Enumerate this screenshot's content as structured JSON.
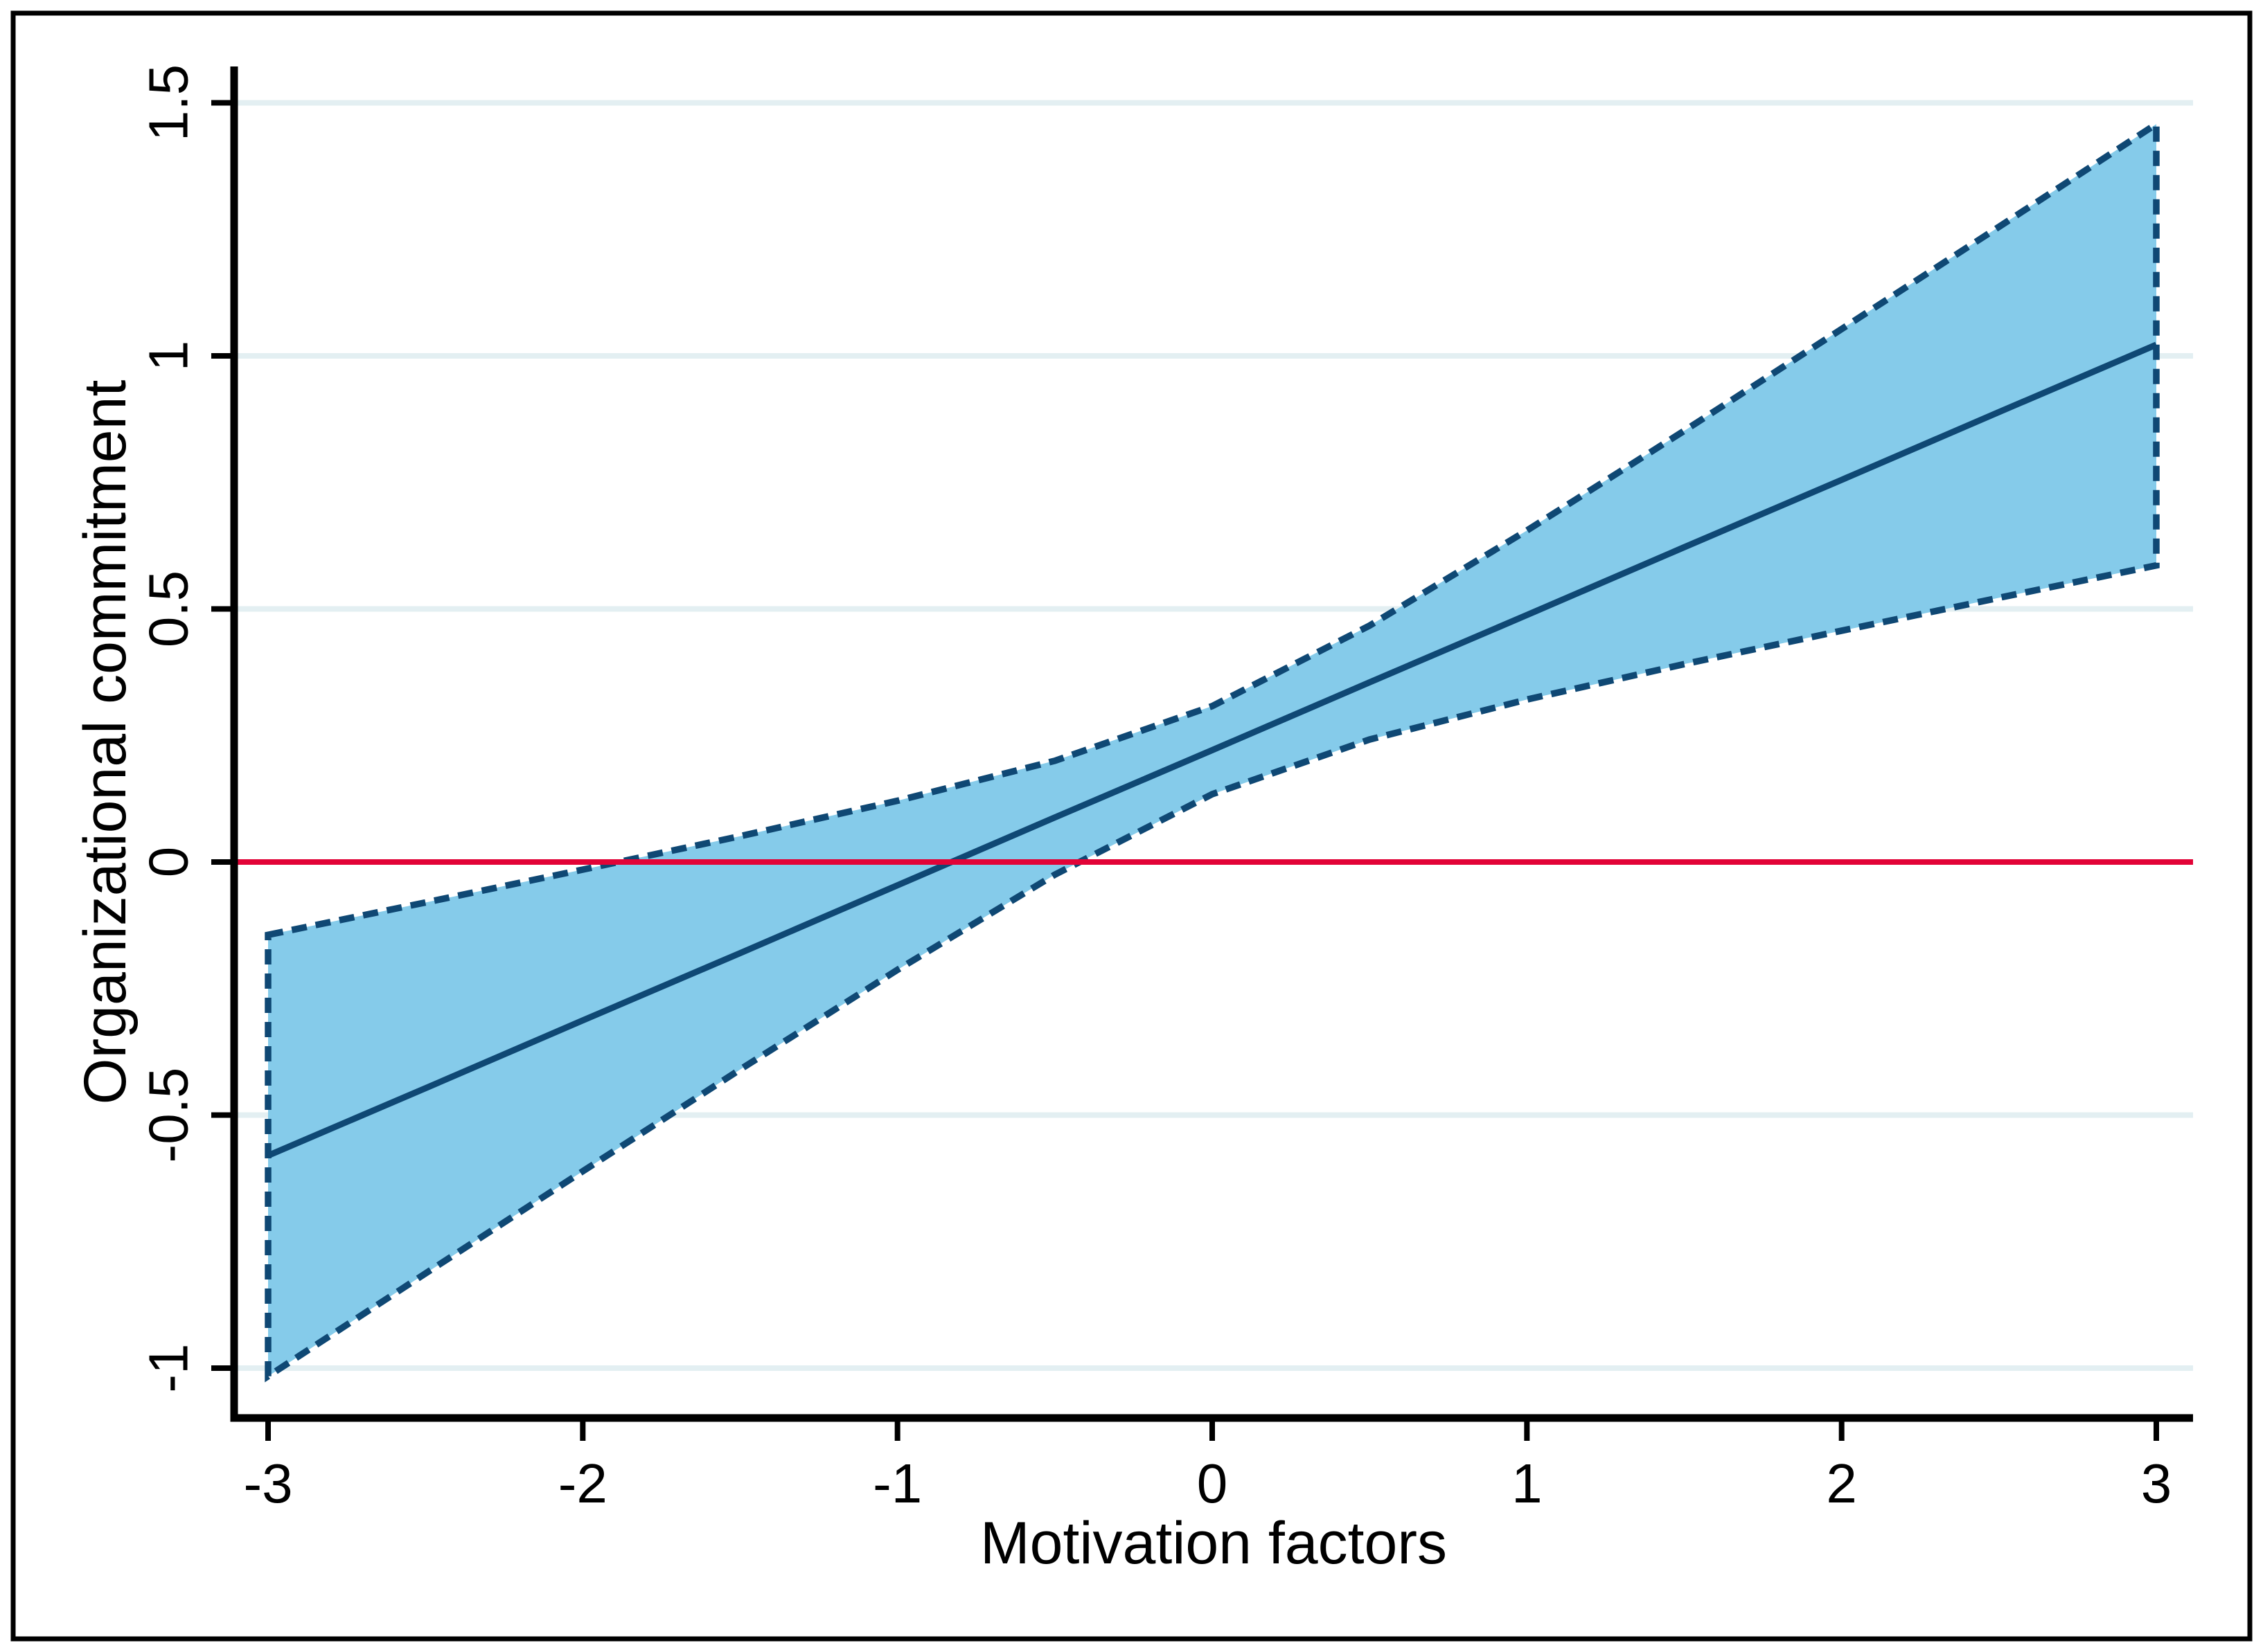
{
  "page": {
    "background": "#FFFFFF",
    "border_color": "#000000"
  },
  "chart_data": {
    "type": "line",
    "title": "",
    "xlabel": "Motivation factors",
    "ylabel": "Organizational commitment",
    "x_ticks": [
      -3,
      -2,
      -1,
      0,
      1,
      2,
      3
    ],
    "x_tick_labels": [
      "-3",
      "-2",
      "-1",
      "0",
      "1",
      "2",
      "3"
    ],
    "y_ticks": [
      1.5,
      1,
      0.5,
      0,
      -0.5,
      -1
    ],
    "y_tick_labels": [
      "1.5",
      "1",
      "0.5",
      "0",
      "-0.5",
      "-1"
    ],
    "xlim": [
      -3.11,
      3.12
    ],
    "ylim": [
      -1.1,
      1.57
    ],
    "grid": "horizontal",
    "legend_position": "none",
    "colors": {
      "band_fill": "#85CBEA",
      "band_edge": "#0F4874",
      "fit_line": "#0F4874",
      "zero_line": "#E20337",
      "gridline": "#E3EFF2",
      "axis": "#000000",
      "text": "#000000"
    },
    "x": [
      -3,
      -2.5,
      -2,
      -1.5,
      -1,
      -0.5,
      0,
      0.5,
      1,
      1.5,
      2,
      2.5,
      3
    ],
    "series": [
      {
        "name": "fitted-line",
        "style": "solid",
        "values": [
          -0.58,
          -0.447,
          -0.313,
          -0.18,
          -0.046,
          0.088,
          0.221,
          0.355,
          0.488,
          0.622,
          0.755,
          0.889,
          1.022
        ]
      },
      {
        "name": "ci-upper",
        "style": "dashed",
        "values": [
          -0.144,
          -0.08,
          -0.015,
          0.051,
          0.121,
          0.2,
          0.308,
          0.467,
          0.655,
          0.852,
          1.053,
          1.255,
          1.458
        ]
      },
      {
        "name": "ci-lower",
        "style": "dashed",
        "values": [
          -1.016,
          -0.813,
          -0.611,
          -0.41,
          -0.213,
          -0.025,
          0.134,
          0.242,
          0.321,
          0.391,
          0.457,
          0.522,
          0.586
        ]
      }
    ],
    "reference_line": {
      "name": "zero-line",
      "y": 0,
      "style": "solid"
    },
    "band": {
      "between": [
        "ci-lower",
        "ci-upper"
      ],
      "fill": "#85CBEA",
      "edge_style": "dashed"
    }
  }
}
